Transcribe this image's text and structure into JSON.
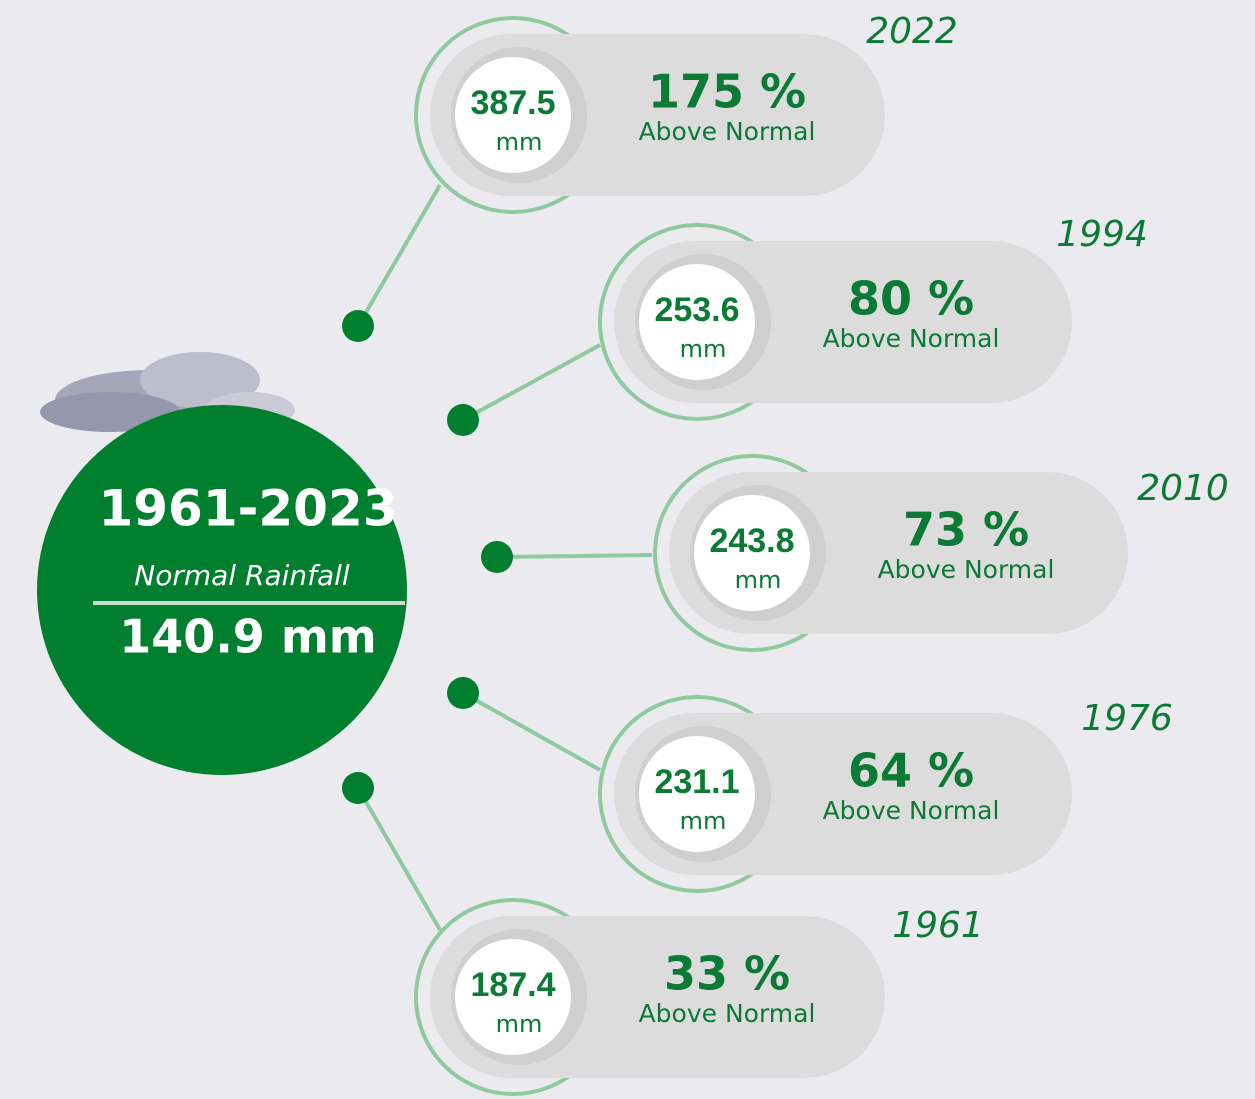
{
  "center": {
    "period": "1961-2023",
    "label": "Normal Rainfall",
    "value": "140.9 mm"
  },
  "items": [
    {
      "year": "2022",
      "amount": "387.5",
      "unit": "mm",
      "percent": "175 %",
      "status": "Above Normal"
    },
    {
      "year": "1994",
      "amount": "253.6",
      "unit": "mm",
      "percent": "80 %",
      "status": "Above Normal"
    },
    {
      "year": "2010",
      "amount": "243.8",
      "unit": "mm",
      "percent": "73 %",
      "status": "Above Normal"
    },
    {
      "year": "1976",
      "amount": "231.1",
      "unit": "mm",
      "percent": "64 %",
      "status": "Above Normal"
    },
    {
      "year": "1961",
      "amount": "187.4",
      "unit": "mm",
      "percent": "33 %",
      "status": "Above Normal"
    }
  ]
}
